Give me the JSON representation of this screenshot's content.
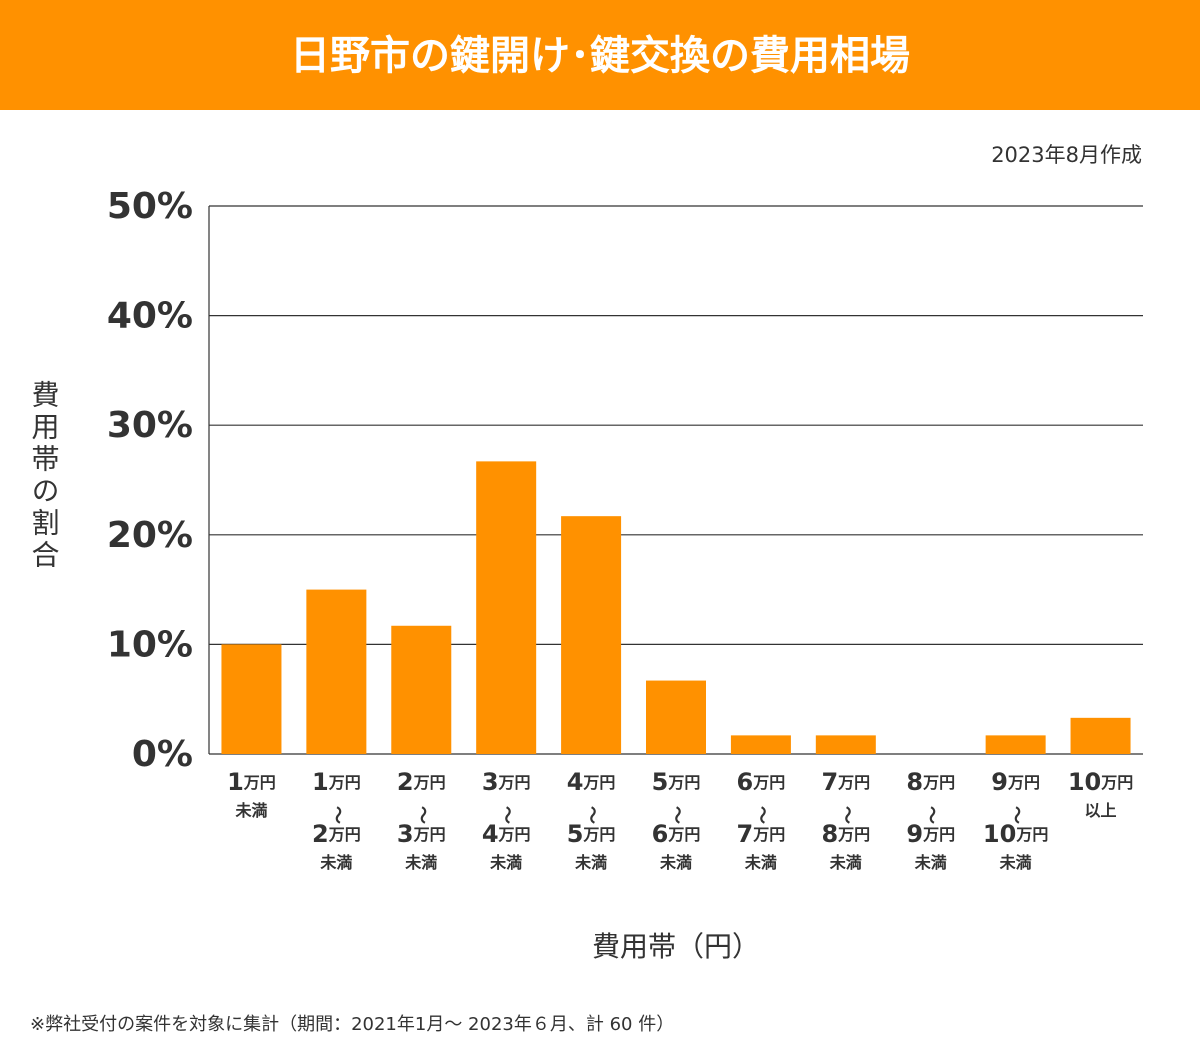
{
  "chart_data": {
    "type": "bar",
    "title": "日野市の鍵開け･鍵交換の費用相場",
    "subtitle": "2023年8月作成",
    "y_label": "費用帯の割合",
    "x_label": "費用帯（円）",
    "footnote": "※弊社受付の案件を対象に集計（期間：2021年1月～ 2023年６月、計 60 件）",
    "categories": [
      [
        "1万円",
        "未満"
      ],
      [
        "1万円",
        "〜",
        "2万円",
        "未満"
      ],
      [
        "2万円",
        "〜",
        "3万円",
        "未満"
      ],
      [
        "3万円",
        "〜",
        "4万円",
        "未満"
      ],
      [
        "4万円",
        "〜",
        "5万円",
        "未満"
      ],
      [
        "5万円",
        "〜",
        "6万円",
        "未満"
      ],
      [
        "6万円",
        "〜",
        "7万円",
        "未満"
      ],
      [
        "7万円",
        "〜",
        "8万円",
        "未満"
      ],
      [
        "8万円",
        "〜",
        "9万円",
        "未満"
      ],
      [
        "9万円",
        "〜",
        "10万円",
        "未満"
      ],
      [
        "10万円",
        "以上"
      ]
    ],
    "values": [
      10,
      15,
      11.7,
      26.7,
      21.7,
      6.7,
      1.7,
      1.7,
      0,
      1.7,
      3.3
    ],
    "color": "#ff9100",
    "ylim": [
      0,
      50
    ],
    "yticks": [
      {
        "value": 0,
        "label": "0%"
      },
      {
        "value": 10,
        "label": "10%"
      },
      {
        "value": 20,
        "label": "20%"
      },
      {
        "value": 30,
        "label": "30%"
      },
      {
        "value": 40,
        "label": "40%"
      },
      {
        "value": 50,
        "label": "50%"
      }
    ],
    "grid": true
  }
}
